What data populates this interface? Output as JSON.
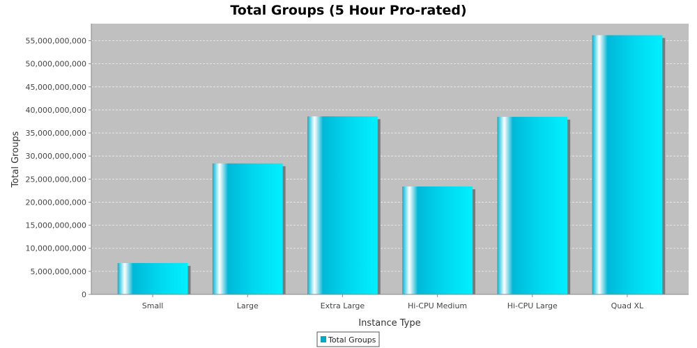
{
  "chart_data": {
    "type": "bar",
    "title": "Total Groups (5 Hour Pro-rated)",
    "xlabel": "Instance Type",
    "ylabel": "Total Groups",
    "categories": [
      "Small",
      "Large",
      "Extra Large",
      "Hi-CPU Medium",
      "Hi-CPU Large",
      "Quad XL"
    ],
    "series": [
      {
        "name": "Total Groups",
        "values": [
          6800000000,
          28400000000,
          38600000000,
          23400000000,
          38500000000,
          56200000000
        ]
      }
    ],
    "ylim": [
      0,
      58700000000
    ],
    "yticks": [
      0,
      5000000000,
      10000000000,
      15000000000,
      20000000000,
      25000000000,
      30000000000,
      35000000000,
      40000000000,
      45000000000,
      50000000000,
      55000000000
    ],
    "ytick_labels": [
      "0",
      "5,000,000,000",
      "10,000,000,000",
      "15,000,000,000",
      "20,000,000,000",
      "25,000,000,000",
      "30,000,000,000",
      "35,000,000,000",
      "40,000,000,000",
      "45,000,000,000",
      "50,000,000,000",
      "55,000,000,000"
    ],
    "grid": true,
    "legend_position": "bottom",
    "colors": {
      "bar": "#00c8e6",
      "bar_light": "#eafcff",
      "bar_dark": "#00a9c8",
      "plot_bg": "#c0c0c0",
      "grid": "#eeeeee",
      "shadow": "#7a7a7a"
    }
  }
}
